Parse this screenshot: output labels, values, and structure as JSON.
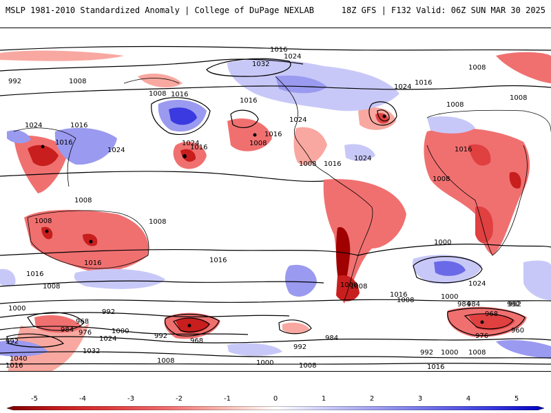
{
  "header": {
    "title": "MSLP 1981-2010 Standardized Anomaly | College of DuPage NEXLAB",
    "run_info": "18Z GFS | F132 Valid: 06Z SUN MAR 30 2025"
  },
  "colorbar": {
    "ticks": [
      "-5",
      "-4",
      "-3",
      "-2",
      "-1",
      "0",
      "1",
      "2",
      "3",
      "4",
      "5"
    ],
    "colors": [
      "#a00000",
      "#c81e1e",
      "#e04040",
      "#f07070",
      "#f8a8a0",
      "#ffffff",
      "#c8c8f8",
      "#9a9af0",
      "#6a6ae8",
      "#3a3ae0",
      "#1010d0"
    ]
  },
  "contour_labels": [
    "1016",
    "1024",
    "1032",
    "1008",
    "992",
    "1008",
    "1016",
    "1024",
    "1016",
    "1008",
    "1024",
    "1016",
    "1024",
    "1016",
    "1008",
    "1008",
    "1008",
    "1008",
    "1024",
    "1016",
    "1008",
    "1016",
    "1008",
    "1016",
    "1008",
    "1024",
    "1024",
    "1016",
    "1016",
    "1008",
    "1000",
    "1016",
    "1016",
    "1024",
    "1008",
    "1000",
    "984",
    "992",
    "1008",
    "1016",
    "1000",
    "992",
    "968",
    "984",
    "976",
    "1000",
    "992",
    "1024",
    "1032",
    "1040",
    "968",
    "992",
    "984",
    "992",
    "1008",
    "1000",
    "1008",
    "1016",
    "984",
    "992",
    "968",
    "976",
    "960",
    "992",
    "1000",
    "1008",
    "1016",
    "1008",
    "1016",
    "1000"
  ]
}
